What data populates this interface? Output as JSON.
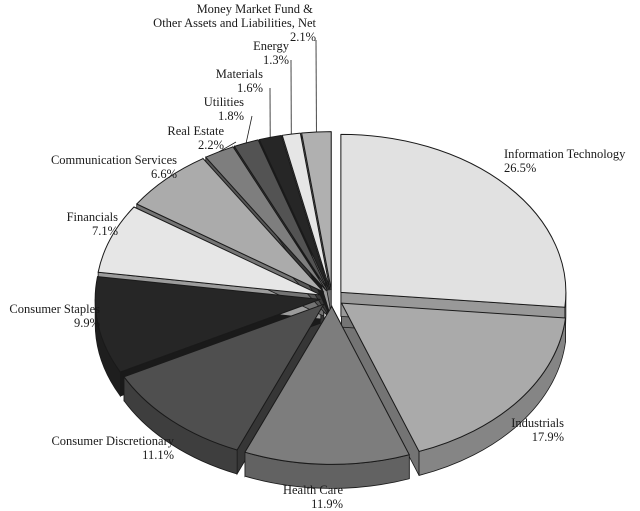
{
  "chart_data": {
    "type": "pie",
    "title": "",
    "style": "3d-exploded",
    "slices": [
      {
        "label": "Information Technology",
        "display": "26.5%",
        "value": 26.5,
        "color": "#e1e1e1"
      },
      {
        "label": "Industrials",
        "display": "17.9%",
        "value": 17.9,
        "color": "#aaaaaa"
      },
      {
        "label": "Health Care",
        "display": "11.9%",
        "value": 11.9,
        "color": "#7d7d7d"
      },
      {
        "label": "Consumer Discretionary",
        "display": "11.1%",
        "value": 11.1,
        "color": "#4f4f4f"
      },
      {
        "label": "Consumer Staples",
        "display": "9.9%",
        "value": 9.9,
        "color": "#262626"
      },
      {
        "label": "Financials",
        "display": "7.1%",
        "value": 7.1,
        "color": "#e6e6e6"
      },
      {
        "label": "Communication Services",
        "display": "6.6%",
        "value": 6.6,
        "color": "#ababab"
      },
      {
        "label": "Real Estate",
        "display": "2.2%",
        "value": 2.2,
        "color": "#7e7e7e"
      },
      {
        "label": "Utilities",
        "display": "1.8%",
        "value": 1.8,
        "color": "#535353"
      },
      {
        "label": "Materials",
        "display": "1.6%",
        "value": 1.6,
        "color": "#262626"
      },
      {
        "label": "Energy",
        "display": "1.3%",
        "value": 1.3,
        "color": "#e6e6e6"
      },
      {
        "label": "Money Market Fund & Other Assets and Liabilities, Net",
        "display": "2.1%",
        "value": 2.1,
        "color": "#b0b0b0"
      }
    ]
  }
}
